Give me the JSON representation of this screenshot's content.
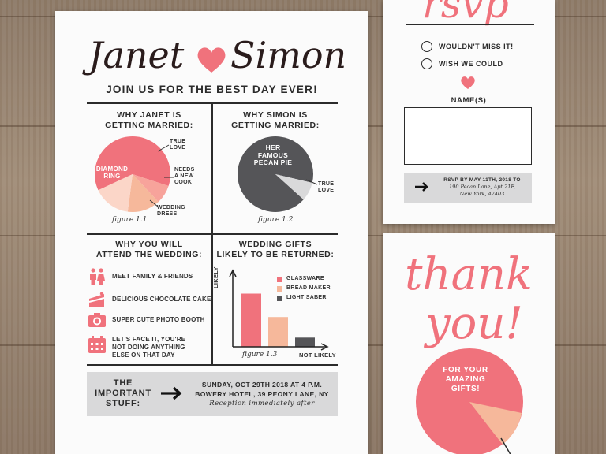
{
  "colors": {
    "pink": "#f0727c",
    "peach": "#f6b89b",
    "pale": "#fbd6c8",
    "dark": "#555558",
    "gray": "#d9d9da"
  },
  "main": {
    "name_left": "Janet",
    "name_right": "Simon",
    "tagline": "JOIN US FOR THE BEST DAY EVER!",
    "janet_title_1": "WHY JANET IS",
    "janet_title_2": "GETTING MARRIED:",
    "janet_pie": {
      "label_diamond_1": "DIAMOND",
      "label_diamond_2": "RING",
      "label_true_1": "TRUE",
      "label_true_2": "LOVE",
      "label_cook_1": "NEEDS",
      "label_cook_2": "A NEW",
      "label_cook_3": "COOK",
      "label_dress_1": "WEDDING",
      "label_dress_2": "DRESS",
      "figure": "figure 1.1"
    },
    "simon_title_1": "WHY SIMON IS",
    "simon_title_2": "GETTING MARRIED:",
    "simon_pie": {
      "label_pie_1": "HER",
      "label_pie_2": "FAMOUS",
      "label_pie_3": "PECAN PIE",
      "label_true_1": "TRUE",
      "label_true_2": "LOVE",
      "figure": "figure 1.2"
    },
    "attend_title_1": "WHY YOU WILL",
    "attend_title_2": "ATTEND THE WEDDING:",
    "reasons": [
      {
        "icon": "people-icon",
        "text": "MEET FAMILY & FRIENDS"
      },
      {
        "icon": "cake-icon",
        "text": "DELICIOUS CHOCOLATE CAKE"
      },
      {
        "icon": "camera-icon",
        "text": "SUPER CUTE PHOTO BOOTH"
      },
      {
        "icon": "calendar-icon",
        "text": "LET'S FACE IT, YOU'RE",
        "text2": "NOT DOING ANYTHING",
        "text3": "ELSE ON THAT DAY"
      }
    ],
    "gifts_title_1": "WEDDING GIFTS",
    "gifts_title_2": "LIKELY TO BE RETURNED:",
    "gifts_chart": {
      "ylabel": "LIKELY",
      "xlabel": "NOT LIKELY",
      "figure": "figure 1.3",
      "legend": [
        "GLASSWARE",
        "BREAD MAKER",
        "LIGHT SABER"
      ]
    },
    "important_1": "THE",
    "important_2": "IMPORTANT",
    "important_3": "STUFF:",
    "details_1": "SUNDAY, OCT 29TH 2018 AT 4 P.M.",
    "details_2": "BOWERY HOTEL, 39 PEONY LANE, NY",
    "details_3": "Reception immediately after"
  },
  "chart_data": [
    {
      "type": "pie",
      "title": "WHY JANET IS GETTING MARRIED:",
      "labels": [
        "DIAMOND RING",
        "TRUE LOVE",
        "NEEDS A NEW COOK",
        "WEDDING DRESS"
      ],
      "values": [
        62,
        8,
        14,
        16
      ]
    },
    {
      "type": "pie",
      "title": "WHY SIMON IS GETTING MARRIED:",
      "labels": [
        "HER FAMOUS PECAN PIE",
        "TRUE LOVE"
      ],
      "values": [
        92,
        8
      ]
    },
    {
      "type": "bar",
      "title": "WEDDING GIFTS LIKELY TO BE RETURNED:",
      "categories": [
        "GLASSWARE",
        "BREAD MAKER",
        "LIGHT SABER"
      ],
      "values": [
        75,
        42,
        13
      ],
      "ylabel": "LIKELY",
      "xlabel": "NOT LIKELY"
    }
  ],
  "rsvp": {
    "title": "rsvp",
    "option_1": "WOULDN'T MISS IT!",
    "option_2": "WISH WE COULD",
    "names_label": "NAME(S)",
    "rsvp_by": "RSVP BY MAY 11TH, 2018 TO",
    "address_1": "190 Pecan Lane, Apt 21F,",
    "address_2": "New York, 47403"
  },
  "thanks": {
    "line_1": "thank",
    "line_2": "you!",
    "pie_1": "FOR YOUR",
    "pie_2": "AMAZING",
    "pie_3": "GIFTS!"
  }
}
